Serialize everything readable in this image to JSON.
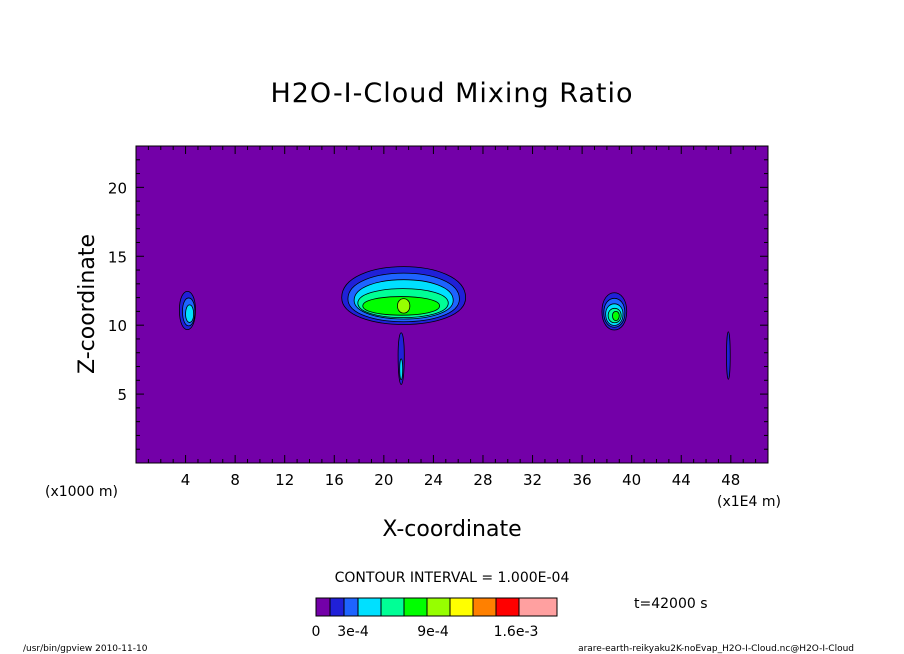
{
  "chart_data": {
    "type": "contour",
    "title": "H2O-I-Cloud Mixing Ratio",
    "xlabel": "X-coordinate",
    "ylabel": "Z-coordinate",
    "x_unit": "(x1E4 m)",
    "y_unit": "(x1000 m)",
    "xlim": [
      0,
      51
    ],
    "ylim": [
      0,
      23
    ],
    "x_ticks": [
      "4",
      "8",
      "12",
      "16",
      "20",
      "24",
      "28",
      "32",
      "36",
      "40",
      "44",
      "48"
    ],
    "x_tick_values": [
      4,
      8,
      12,
      16,
      20,
      24,
      28,
      32,
      36,
      40,
      44,
      48
    ],
    "y_ticks": [
      "5",
      "10",
      "15",
      "20"
    ],
    "y_tick_values": [
      5,
      10,
      15,
      20
    ],
    "background_color": "#7300a8",
    "contour_interval": "CONTOUR INTERVAL = 1.000E-04",
    "time_label": "t=42000 s",
    "colorbar": {
      "colors": [
        "#7300a8",
        "#2020d8",
        "#1e64ff",
        "#00e0ff",
        "#00ff96",
        "#00ff00",
        "#96ff00",
        "#ffff00",
        "#ff8000",
        "#ff0000",
        "#ffa0a0"
      ],
      "labels": [
        "0",
        "3e-4",
        "9e-4",
        "1.6e-3"
      ]
    },
    "cloud_regions": [
      {
        "name": "central anvil",
        "x_center": 21.5,
        "z_range": [
          9.5,
          14.3
        ],
        "peak_level": "green"
      },
      {
        "name": "left cell",
        "x_center": 4.2,
        "z_range": [
          9.2,
          12.8
        ],
        "peak_level": "cyan"
      },
      {
        "name": "right cell",
        "x_center": 38.6,
        "z_range": [
          9.1,
          12.7
        ],
        "peak_level": "green"
      },
      {
        "name": "thin stem",
        "x_center": 21.4,
        "z_range": [
          5.0,
          9.5
        ],
        "peak_level": "cyan"
      },
      {
        "name": "thin filament",
        "x_center": 47.8,
        "z_range": [
          5.5,
          10.0
        ],
        "peak_level": "blue"
      }
    ]
  },
  "footer": {
    "left": "/usr/bin/gpview  2010-11-10",
    "right": "arare-earth-reikyaku2K-noEvap_H2O-I-Cloud.nc@H2O-I-Cloud"
  }
}
